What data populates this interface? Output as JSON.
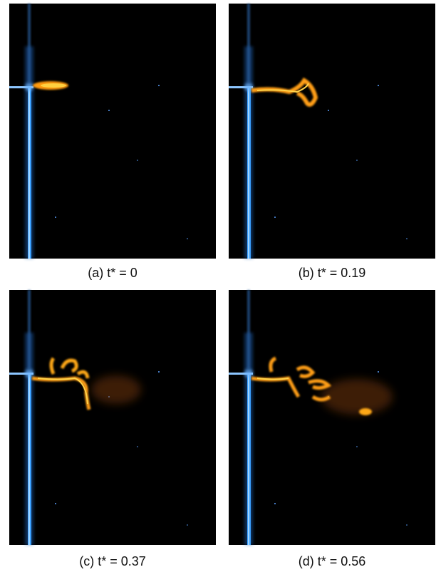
{
  "panels": [
    {
      "caption": "(a) t* = 0"
    },
    {
      "caption": "(b) t* = 0.19"
    },
    {
      "caption": "(c) t* = 0.37"
    },
    {
      "caption": "(d) t* = 0.56"
    }
  ]
}
